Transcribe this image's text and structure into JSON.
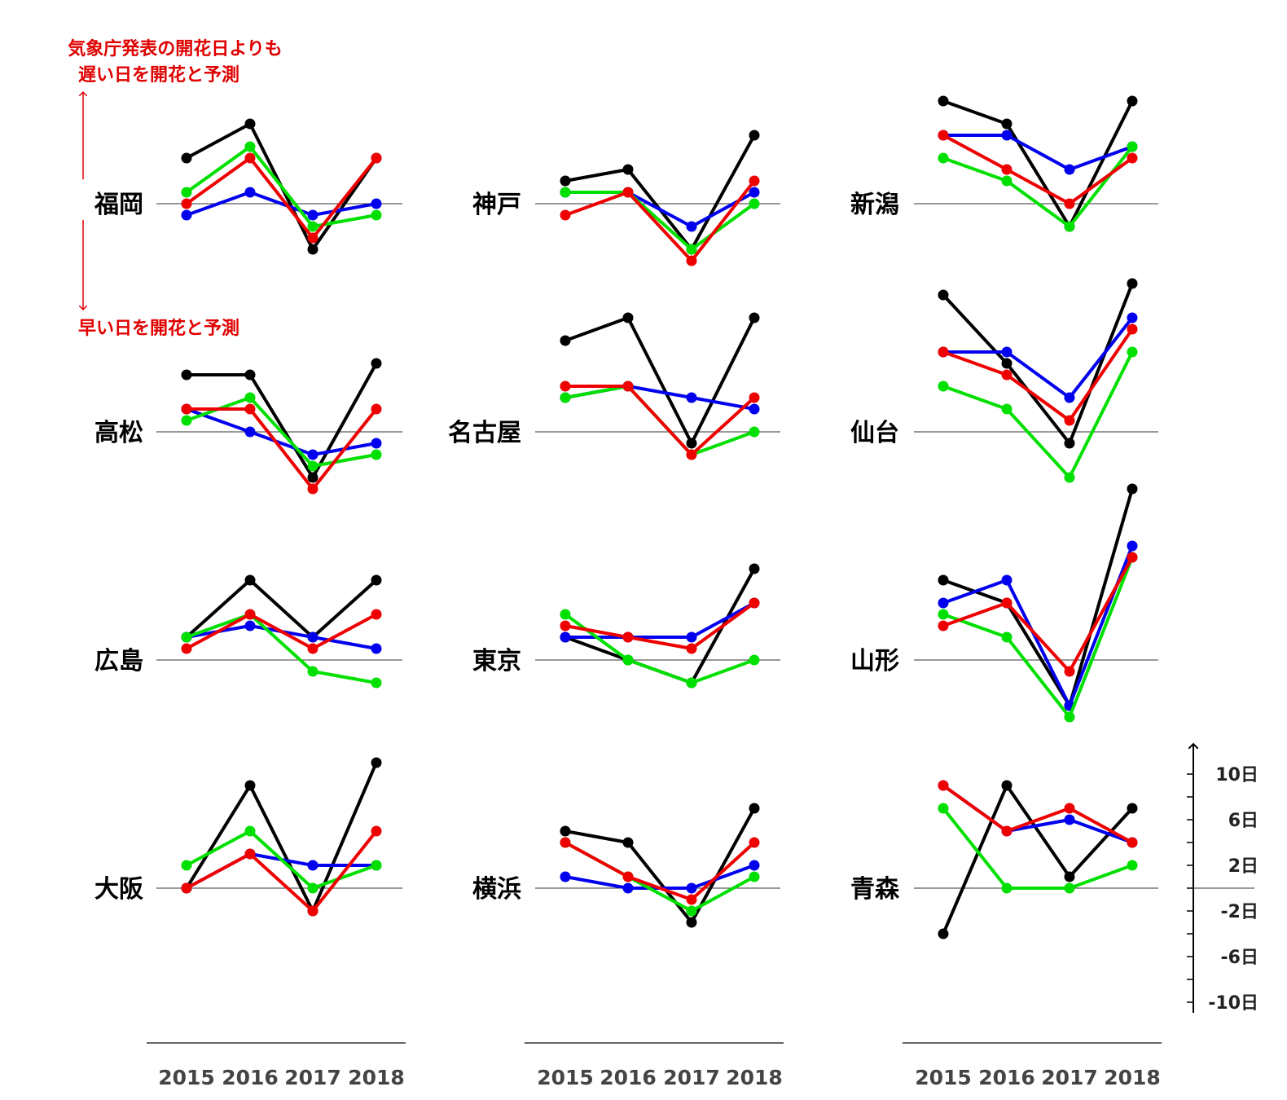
{
  "annotation": {
    "late_line1": "気象庁発表の開花日よりも",
    "late_line2": "遅い日を開花と予測",
    "early_line": "早い日を開花と予測"
  },
  "colors": {
    "black": "#000000",
    "blue": "#0000ee",
    "green": "#00e000",
    "red": "#ee0000",
    "annotation": "#e00000"
  },
  "chart_data": {
    "type": "line",
    "x": [
      "2015",
      "2016",
      "2017",
      "2018"
    ],
    "y_scale_labels": [
      "10日",
      "6日",
      "2日",
      "-2日",
      "-6日",
      "-10日"
    ],
    "y_scale_values": [
      10,
      6,
      2,
      -2,
      -6,
      -10
    ],
    "series_colors": [
      "black",
      "blue",
      "green",
      "red"
    ],
    "panels": [
      {
        "city": "福岡",
        "series": [
          {
            "color": "black",
            "values": [
              4,
              7,
              -4,
              4
            ]
          },
          {
            "color": "blue",
            "values": [
              -1,
              1,
              -1,
              0
            ]
          },
          {
            "color": "green",
            "values": [
              1,
              5,
              -2,
              -1
            ]
          },
          {
            "color": "red",
            "values": [
              0,
              4,
              -3,
              4
            ]
          }
        ]
      },
      {
        "city": "神戸",
        "series": [
          {
            "color": "black",
            "values": [
              2,
              3,
              -4,
              6
            ]
          },
          {
            "color": "blue",
            "values": [
              1,
              1,
              -2,
              1
            ]
          },
          {
            "color": "green",
            "values": [
              1,
              1,
              -4,
              0
            ]
          },
          {
            "color": "red",
            "values": [
              -1,
              1,
              -5,
              2
            ]
          }
        ]
      },
      {
        "city": "新潟",
        "series": [
          {
            "color": "black",
            "values": [
              9,
              7,
              -2,
              9
            ]
          },
          {
            "color": "blue",
            "values": [
              6,
              6,
              3,
              5
            ]
          },
          {
            "color": "green",
            "values": [
              4,
              2,
              -2,
              5
            ]
          },
          {
            "color": "red",
            "values": [
              6,
              3,
              0,
              4
            ]
          }
        ]
      },
      {
        "city": "高松",
        "series": [
          {
            "color": "black",
            "values": [
              5,
              5,
              -4,
              6
            ]
          },
          {
            "color": "blue",
            "values": [
              2,
              0,
              -2,
              -1
            ]
          },
          {
            "color": "green",
            "values": [
              1,
              3,
              -3,
              -2
            ]
          },
          {
            "color": "red",
            "values": [
              2,
              2,
              -5,
              2
            ]
          }
        ]
      },
      {
        "city": "名古屋",
        "series": [
          {
            "color": "black",
            "values": [
              8,
              10,
              -1,
              10
            ]
          },
          {
            "color": "blue",
            "values": [
              3,
              4,
              3,
              2
            ]
          },
          {
            "color": "green",
            "values": [
              3,
              4,
              -2,
              0
            ]
          },
          {
            "color": "red",
            "values": [
              4,
              4,
              -2,
              3
            ]
          }
        ]
      },
      {
        "city": "仙台",
        "series": [
          {
            "color": "black",
            "values": [
              12,
              6,
              -1,
              13
            ]
          },
          {
            "color": "blue",
            "values": [
              7,
              7,
              3,
              10
            ]
          },
          {
            "color": "green",
            "values": [
              4,
              2,
              -4,
              7
            ]
          },
          {
            "color": "red",
            "values": [
              7,
              5,
              1,
              9
            ]
          }
        ]
      },
      {
        "city": "広島",
        "series": [
          {
            "color": "black",
            "values": [
              2,
              7,
              2,
              7
            ]
          },
          {
            "color": "blue",
            "values": [
              2,
              3,
              2,
              1
            ]
          },
          {
            "color": "green",
            "values": [
              2,
              4,
              -1,
              -2
            ]
          },
          {
            "color": "red",
            "values": [
              1,
              4,
              1,
              4
            ]
          }
        ]
      },
      {
        "city": "東京",
        "series": [
          {
            "color": "black",
            "values": [
              2,
              0,
              -2,
              8
            ]
          },
          {
            "color": "blue",
            "values": [
              2,
              2,
              2,
              5
            ]
          },
          {
            "color": "green",
            "values": [
              4,
              0,
              -2,
              0
            ]
          },
          {
            "color": "red",
            "values": [
              3,
              2,
              1,
              5
            ]
          }
        ]
      },
      {
        "city": "山形",
        "series": [
          {
            "color": "black",
            "values": [
              7,
              5,
              -4,
              15
            ]
          },
          {
            "color": "blue",
            "values": [
              5,
              7,
              -4,
              10
            ]
          },
          {
            "color": "green",
            "values": [
              4,
              2,
              -5,
              9
            ]
          },
          {
            "color": "red",
            "values": [
              3,
              5,
              -1,
              9
            ]
          }
        ]
      },
      {
        "city": "大阪",
        "series": [
          {
            "color": "black",
            "values": [
              0,
              9,
              -2,
              11
            ]
          },
          {
            "color": "blue",
            "values": [
              0,
              3,
              2,
              2
            ]
          },
          {
            "color": "green",
            "values": [
              2,
              5,
              0,
              2
            ]
          },
          {
            "color": "red",
            "values": [
              0,
              3,
              -2,
              5
            ]
          }
        ]
      },
      {
        "city": "横浜",
        "series": [
          {
            "color": "black",
            "values": [
              5,
              4,
              -3,
              7
            ]
          },
          {
            "color": "blue",
            "values": [
              1,
              0,
              0,
              2
            ]
          },
          {
            "color": "green",
            "values": [
              4,
              1,
              -2,
              1
            ]
          },
          {
            "color": "red",
            "values": [
              4,
              1,
              -1,
              4
            ]
          }
        ]
      },
      {
        "city": "青森",
        "series": [
          {
            "color": "black",
            "values": [
              -4,
              9,
              1,
              7
            ]
          },
          {
            "color": "blue",
            "values": [
              9,
              5,
              6,
              4
            ]
          },
          {
            "color": "green",
            "values": [
              7,
              0,
              0,
              2
            ]
          },
          {
            "color": "red",
            "values": [
              9,
              5,
              7,
              4
            ]
          }
        ]
      }
    ]
  }
}
